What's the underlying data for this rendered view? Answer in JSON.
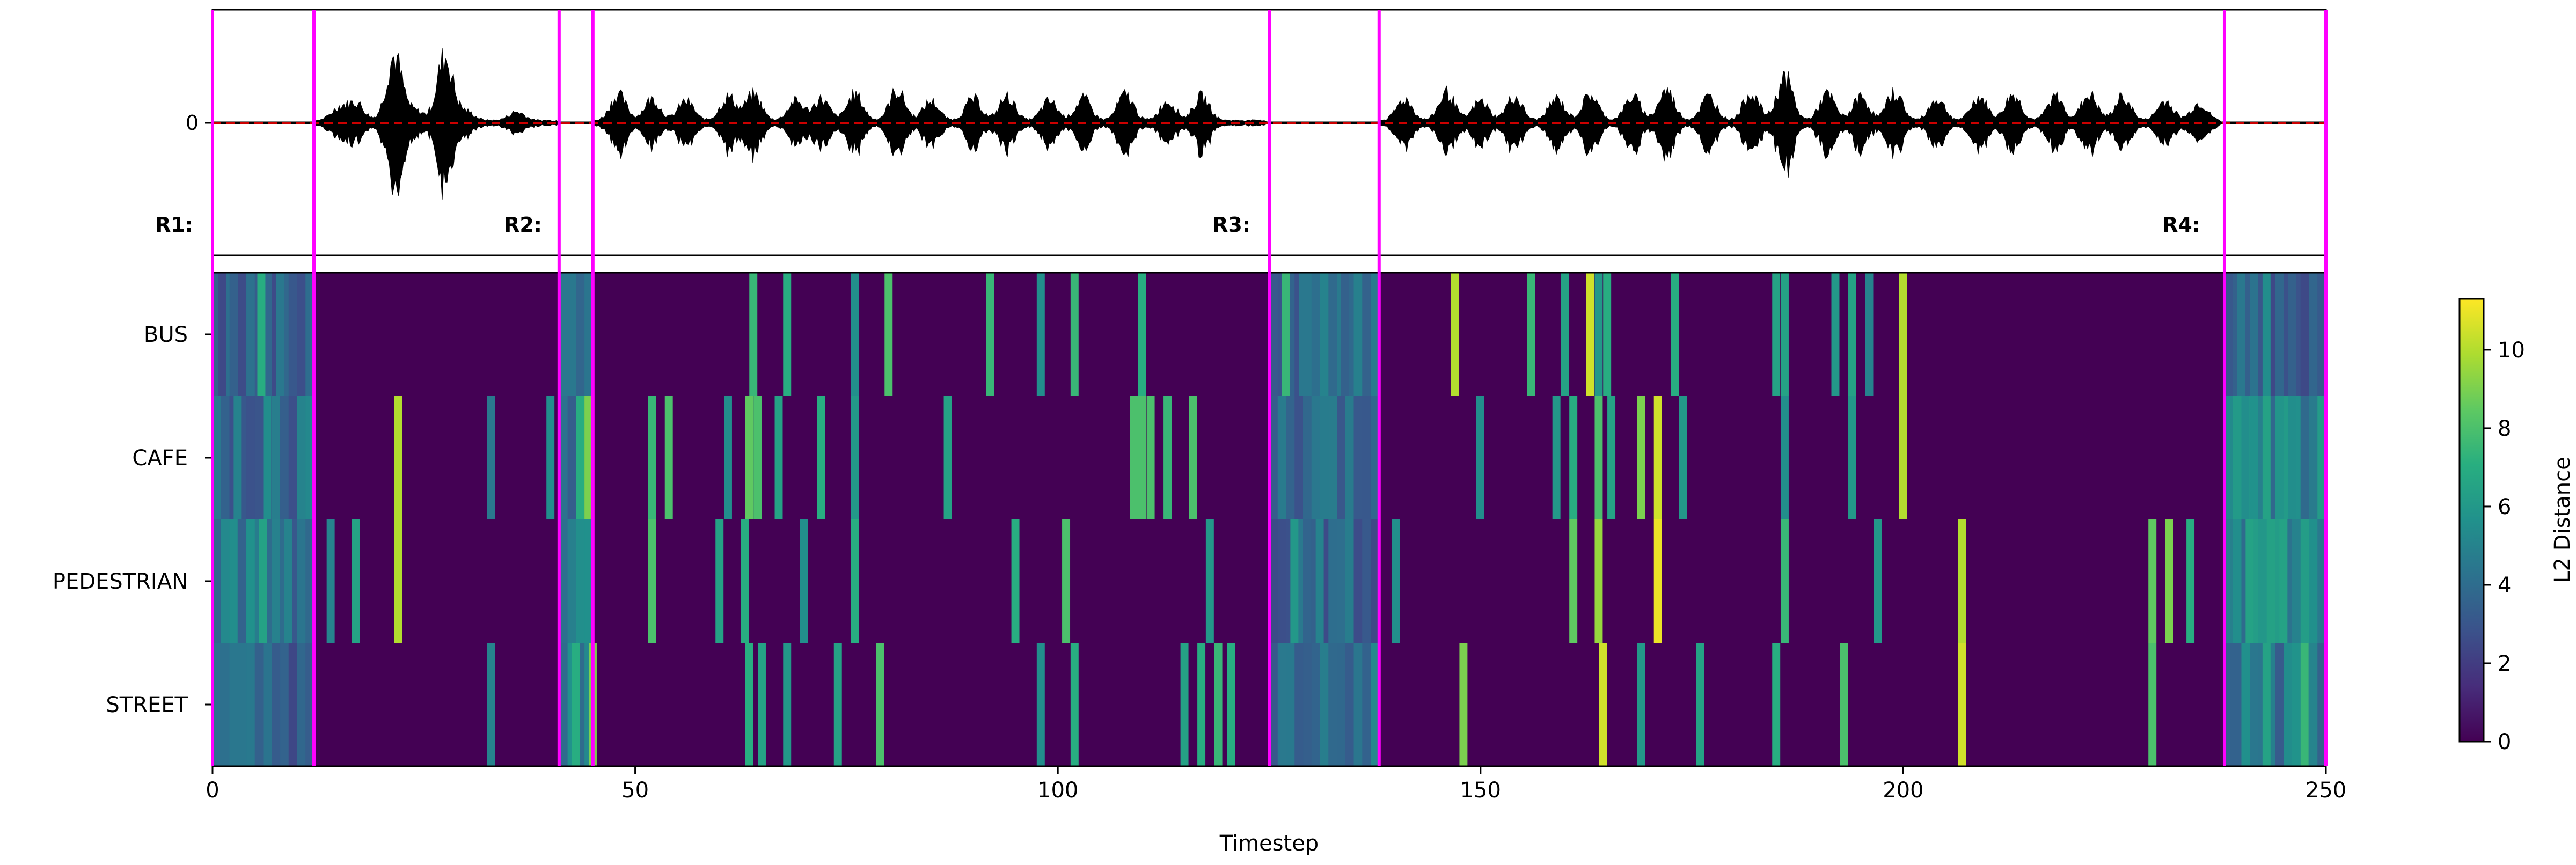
{
  "chart_data": [
    {
      "type": "line",
      "panel": "waveform",
      "yticks": [
        0
      ],
      "baseline": 0,
      "baseline_color": "#cc0000",
      "wave_color": "#000000",
      "region_labels": [
        "R1:",
        "R2:",
        "R3:",
        "R4:"
      ],
      "boundary_color": "#ff00ff",
      "boundaries": [
        0,
        12,
        41,
        45,
        125,
        138,
        238,
        250
      ]
    },
    {
      "type": "heatmap",
      "panel": "l2-distance",
      "title": "",
      "xlabel": "Timestep",
      "ylabel": "",
      "categories": [
        "BUS",
        "CAFE",
        "PEDESTRIAN",
        "STREET"
      ],
      "x_range": [
        0,
        250
      ],
      "xticks": [
        0,
        50,
        100,
        150,
        200,
        250
      ],
      "colormap": "viridis",
      "background_value": 0,
      "colorbar": {
        "label": "L2 Distance",
        "range": [
          0,
          11.3
        ],
        "ticks": [
          0,
          2,
          4,
          6,
          8,
          10
        ]
      },
      "bands": [
        {
          "start": 0,
          "end": 12,
          "values": [
            4.0,
            4.5,
            5.0,
            4.0
          ]
        },
        {
          "start": 41,
          "end": 45,
          "values": [
            4.0,
            4.0,
            5.0,
            5.0
          ]
        },
        {
          "start": 125,
          "end": 138,
          "values": [
            4.5,
            4.5,
            4.0,
            4.5
          ]
        },
        {
          "start": 238,
          "end": 250,
          "values": [
            4.0,
            5.5,
            6.0,
            5.0
          ]
        }
      ],
      "cells": [
        {
          "row": "BUS",
          "x": 1.2,
          "value": 2.5
        },
        {
          "row": "BUS",
          "x": 2.6,
          "value": 3.5
        },
        {
          "row": "BUS",
          "x": 5.8,
          "value": 7.0
        },
        {
          "row": "BUS",
          "x": 8.0,
          "value": 4.5
        },
        {
          "row": "BUS",
          "x": 64.0,
          "value": 7.5
        },
        {
          "row": "BUS",
          "x": 68.0,
          "value": 7.0
        },
        {
          "row": "BUS",
          "x": 76.0,
          "value": 5.5
        },
        {
          "row": "BUS",
          "x": 80.0,
          "value": 8.0
        },
        {
          "row": "BUS",
          "x": 92.0,
          "value": 7.5
        },
        {
          "row": "BUS",
          "x": 98.0,
          "value": 5.5
        },
        {
          "row": "BUS",
          "x": 102.0,
          "value": 7.5
        },
        {
          "row": "BUS",
          "x": 110.0,
          "value": 7.0
        },
        {
          "row": "BUS",
          "x": 127.0,
          "value": 7.5
        },
        {
          "row": "BUS",
          "x": 129.0,
          "value": 4.5
        },
        {
          "row": "BUS",
          "x": 131.5,
          "value": 5.0
        },
        {
          "row": "BUS",
          "x": 134.0,
          "value": 3.5
        },
        {
          "row": "BUS",
          "x": 147.0,
          "value": 10.0
        },
        {
          "row": "BUS",
          "x": 156.0,
          "value": 7.5
        },
        {
          "row": "BUS",
          "x": 160.0,
          "value": 6.5
        },
        {
          "row": "BUS",
          "x": 163.0,
          "value": 10.5
        },
        {
          "row": "BUS",
          "x": 164.0,
          "value": 6.0
        },
        {
          "row": "BUS",
          "x": 165.0,
          "value": 7.0
        },
        {
          "row": "BUS",
          "x": 173.0,
          "value": 7.0
        },
        {
          "row": "BUS",
          "x": 185.0,
          "value": 6.5
        },
        {
          "row": "BUS",
          "x": 186.0,
          "value": 6.5
        },
        {
          "row": "BUS",
          "x": 192.0,
          "value": 6.0
        },
        {
          "row": "BUS",
          "x": 194.0,
          "value": 6.5
        },
        {
          "row": "BUS",
          "x": 196.0,
          "value": 5.0
        },
        {
          "row": "BUS",
          "x": 200.0,
          "value": 10.0
        },
        {
          "row": "BUS",
          "x": 240.0,
          "value": 4.5
        },
        {
          "row": "BUS",
          "x": 243.0,
          "value": 5.5
        },
        {
          "row": "BUS",
          "x": 246.0,
          "value": 3.5
        },
        {
          "row": "CAFE",
          "x": 3.0,
          "value": 5.0
        },
        {
          "row": "CAFE",
          "x": 6.5,
          "value": 5.5
        },
        {
          "row": "CAFE",
          "x": 22.0,
          "value": 10.0
        },
        {
          "row": "CAFE",
          "x": 33.0,
          "value": 4.5
        },
        {
          "row": "CAFE",
          "x": 40.0,
          "value": 5.5
        },
        {
          "row": "CAFE",
          "x": 43.5,
          "value": 7.0
        },
        {
          "row": "CAFE",
          "x": 44.5,
          "value": 9.0
        },
        {
          "row": "CAFE",
          "x": 52.0,
          "value": 7.5
        },
        {
          "row": "CAFE",
          "x": 54.0,
          "value": 8.0
        },
        {
          "row": "CAFE",
          "x": 61.0,
          "value": 5.5
        },
        {
          "row": "CAFE",
          "x": 63.5,
          "value": 8.5
        },
        {
          "row": "CAFE",
          "x": 64.5,
          "value": 8.0
        },
        {
          "row": "CAFE",
          "x": 67.0,
          "value": 6.5
        },
        {
          "row": "CAFE",
          "x": 72.0,
          "value": 7.0
        },
        {
          "row": "CAFE",
          "x": 76.0,
          "value": 6.0
        },
        {
          "row": "CAFE",
          "x": 87.0,
          "value": 6.5
        },
        {
          "row": "CAFE",
          "x": 109.0,
          "value": 8.0
        },
        {
          "row": "CAFE",
          "x": 110.0,
          "value": 8.0
        },
        {
          "row": "CAFE",
          "x": 111.0,
          "value": 8.0
        },
        {
          "row": "CAFE",
          "x": 113.0,
          "value": 7.5
        },
        {
          "row": "CAFE",
          "x": 116.0,
          "value": 8.0
        },
        {
          "row": "CAFE",
          "x": 150.0,
          "value": 5.5
        },
        {
          "row": "CAFE",
          "x": 159.0,
          "value": 6.0
        },
        {
          "row": "CAFE",
          "x": 161.0,
          "value": 7.0
        },
        {
          "row": "CAFE",
          "x": 164.0,
          "value": 8.0
        },
        {
          "row": "CAFE",
          "x": 165.5,
          "value": 6.5
        },
        {
          "row": "CAFE",
          "x": 169.0,
          "value": 9.0
        },
        {
          "row": "CAFE",
          "x": 171.0,
          "value": 10.5
        },
        {
          "row": "CAFE",
          "x": 174.0,
          "value": 6.0
        },
        {
          "row": "CAFE",
          "x": 186.0,
          "value": 5.5
        },
        {
          "row": "CAFE",
          "x": 194.0,
          "value": 6.0
        },
        {
          "row": "CAFE",
          "x": 200.0,
          "value": 10.0
        },
        {
          "row": "CAFE",
          "x": 240.5,
          "value": 5.5
        },
        {
          "row": "CAFE",
          "x": 243.0,
          "value": 6.5
        },
        {
          "row": "CAFE",
          "x": 246.0,
          "value": 5.5
        },
        {
          "row": "PEDESTRIAN",
          "x": 2.5,
          "value": 5.5
        },
        {
          "row": "PEDESTRIAN",
          "x": 6.0,
          "value": 6.5
        },
        {
          "row": "PEDESTRIAN",
          "x": 9.0,
          "value": 5.0
        },
        {
          "row": "PEDESTRIAN",
          "x": 14.0,
          "value": 5.0
        },
        {
          "row": "PEDESTRIAN",
          "x": 17.0,
          "value": 6.5
        },
        {
          "row": "PEDESTRIAN",
          "x": 22.0,
          "value": 10.0
        },
        {
          "row": "PEDESTRIAN",
          "x": 52.0,
          "value": 8.0
        },
        {
          "row": "PEDESTRIAN",
          "x": 60.0,
          "value": 6.5
        },
        {
          "row": "PEDESTRIAN",
          "x": 63.0,
          "value": 7.0
        },
        {
          "row": "PEDESTRIAN",
          "x": 70.0,
          "value": 5.5
        },
        {
          "row": "PEDESTRIAN",
          "x": 76.0,
          "value": 7.0
        },
        {
          "row": "PEDESTRIAN",
          "x": 95.0,
          "value": 7.0
        },
        {
          "row": "PEDESTRIAN",
          "x": 101.0,
          "value": 8.0
        },
        {
          "row": "PEDESTRIAN",
          "x": 118.0,
          "value": 6.0
        },
        {
          "row": "PEDESTRIAN",
          "x": 128.0,
          "value": 6.0
        },
        {
          "row": "PEDESTRIAN",
          "x": 131.0,
          "value": 5.0
        },
        {
          "row": "PEDESTRIAN",
          "x": 140.0,
          "value": 5.5
        },
        {
          "row": "PEDESTRIAN",
          "x": 161.0,
          "value": 8.5
        },
        {
          "row": "PEDESTRIAN",
          "x": 164.0,
          "value": 9.5
        },
        {
          "row": "PEDESTRIAN",
          "x": 171.0,
          "value": 11.0
        },
        {
          "row": "PEDESTRIAN",
          "x": 186.0,
          "value": 7.5
        },
        {
          "row": "PEDESTRIAN",
          "x": 197.0,
          "value": 6.0
        },
        {
          "row": "PEDESTRIAN",
          "x": 207.0,
          "value": 10.0
        },
        {
          "row": "PEDESTRIAN",
          "x": 229.5,
          "value": 8.5
        },
        {
          "row": "PEDESTRIAN",
          "x": 231.5,
          "value": 9.0
        },
        {
          "row": "PEDESTRIAN",
          "x": 234.0,
          "value": 7.0
        },
        {
          "row": "PEDESTRIAN",
          "x": 241.0,
          "value": 6.5
        },
        {
          "row": "PEDESTRIAN",
          "x": 245.0,
          "value": 6.5
        },
        {
          "row": "STREET",
          "x": 33.0,
          "value": 5.0
        },
        {
          "row": "STREET",
          "x": 43.0,
          "value": 7.0
        },
        {
          "row": "STREET",
          "x": 45.0,
          "value": 9.0
        },
        {
          "row": "STREET",
          "x": 63.5,
          "value": 7.0
        },
        {
          "row": "STREET",
          "x": 65.0,
          "value": 6.5
        },
        {
          "row": "STREET",
          "x": 68.0,
          "value": 6.0
        },
        {
          "row": "STREET",
          "x": 74.0,
          "value": 6.5
        },
        {
          "row": "STREET",
          "x": 79.0,
          "value": 8.0
        },
        {
          "row": "STREET",
          "x": 98.0,
          "value": 5.5
        },
        {
          "row": "STREET",
          "x": 102.0,
          "value": 7.0
        },
        {
          "row": "STREET",
          "x": 115.0,
          "value": 6.5
        },
        {
          "row": "STREET",
          "x": 117.0,
          "value": 7.0
        },
        {
          "row": "STREET",
          "x": 119.0,
          "value": 7.5
        },
        {
          "row": "STREET",
          "x": 120.5,
          "value": 7.0
        },
        {
          "row": "STREET",
          "x": 148.0,
          "value": 9.0
        },
        {
          "row": "STREET",
          "x": 164.5,
          "value": 10.5
        },
        {
          "row": "STREET",
          "x": 169.0,
          "value": 6.0
        },
        {
          "row": "STREET",
          "x": 176.0,
          "value": 6.5
        },
        {
          "row": "STREET",
          "x": 185.0,
          "value": 7.0
        },
        {
          "row": "STREET",
          "x": 193.0,
          "value": 8.0
        },
        {
          "row": "STREET",
          "x": 207.0,
          "value": 10.5
        },
        {
          "row": "STREET",
          "x": 229.5,
          "value": 8.0
        },
        {
          "row": "STREET",
          "x": 243.0,
          "value": 6.5
        },
        {
          "row": "STREET",
          "x": 247.5,
          "value": 7.5
        }
      ]
    }
  ]
}
